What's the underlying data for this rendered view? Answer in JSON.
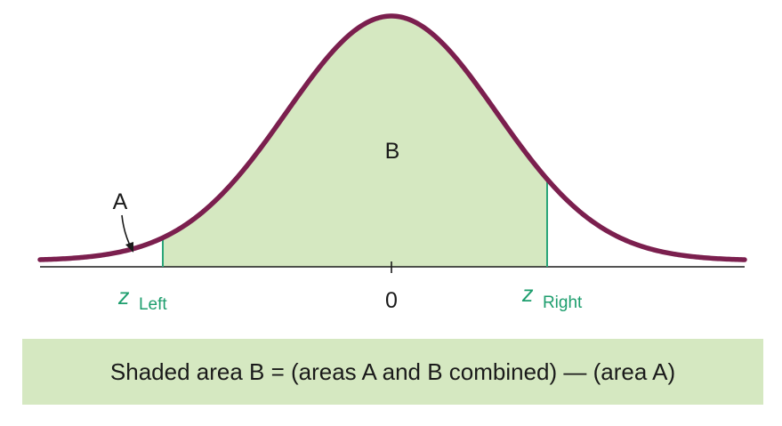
{
  "diagram": {
    "region_labels": {
      "a": "A",
      "b": "B"
    },
    "axis": {
      "center_tick_label": "0",
      "z_left": {
        "symbol": "z",
        "subscript": "Left"
      },
      "z_right": {
        "symbol": "z",
        "subscript": "Right"
      }
    },
    "caption": "Shaded area B = (areas A and B combined) — (area A)"
  },
  "colors": {
    "curve": "#7b1f4e",
    "shaded_fill": "#d5e8c1",
    "z_label": "#1e9e6e",
    "boundary_line": "#2aa578",
    "axis": "#1a1a1a",
    "text": "#1a1a1a"
  }
}
